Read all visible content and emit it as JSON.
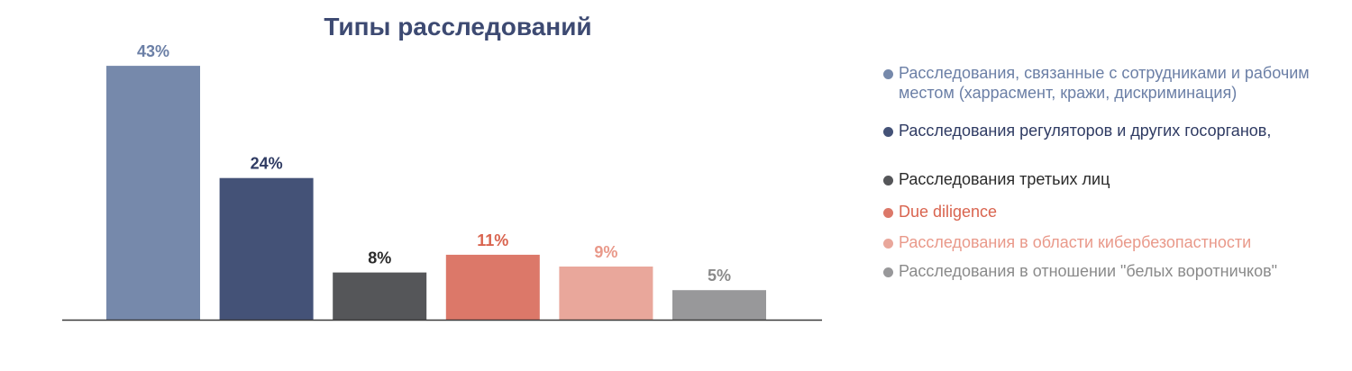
{
  "chart_data": {
    "type": "bar",
    "title": "Типы расследований",
    "xlabel": "",
    "ylabel": "",
    "ylim": [
      0,
      45
    ],
    "grid": false,
    "legend_position": "right",
    "categories": [
      "Расследования, связанные с сотрудниками и рабочим местом (харрасмент, кражи, дискриминация)",
      "Расследования регуляторов и других госорганов,",
      "Расследования третьих лиц",
      "Due diligence",
      "Расследования в области кибербезопастности",
      "Расследования в отношении \"белых воротничков\""
    ],
    "values": [
      43,
      24,
      8,
      11,
      9,
      5
    ],
    "data_labels": [
      "43%",
      "24%",
      "8%",
      "11%",
      "9%",
      "5%"
    ],
    "colors": [
      "#7689ab",
      "#445277",
      "#555659",
      "#dc7869",
      "#e9a79b",
      "#98989a"
    ],
    "label_colors": [
      "#6b7fa6",
      "#2f3b63",
      "#2b2b2b",
      "#d9644f",
      "#e9998a",
      "#8a8a8a"
    ]
  }
}
